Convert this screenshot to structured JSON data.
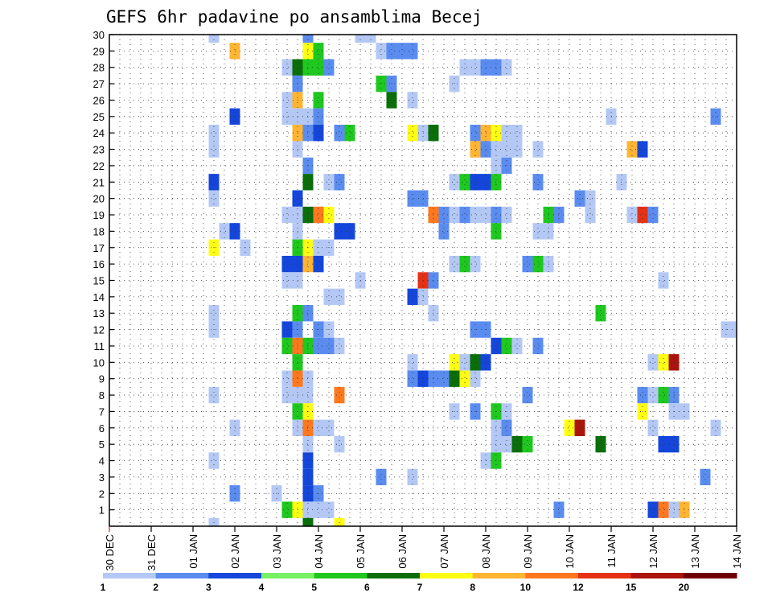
{
  "chart_data": {
    "type": "heatmap",
    "title": "GEFS 6hr padavine po ansamblima Becej",
    "xlabel": "",
    "ylabel": "",
    "y_ticks": [
      "1",
      "2",
      "3",
      "4",
      "5",
      "6",
      "7",
      "8",
      "9",
      "10",
      "11",
      "12",
      "13",
      "14",
      "15",
      "16",
      "17",
      "18",
      "19",
      "20",
      "21",
      "22",
      "23",
      "24",
      "25",
      "26",
      "27",
      "28",
      "29",
      "30"
    ],
    "x_ticks": [
      "30 DEC",
      "31 DEC",
      "01 JAN",
      "02 JAN",
      "03 JAN",
      "04 JAN",
      "05 JAN",
      "06 JAN",
      "07 JAN",
      "08 JAN",
      "09 JAN",
      "10 JAN",
      "11 JAN",
      "12 JAN",
      "13 JAN",
      "14 JAN"
    ],
    "time_step_hours": 6,
    "xlim_days": [
      0,
      15
    ],
    "ylim_members": [
      0,
      30
    ],
    "grid": true,
    "colorbar": {
      "labels": [
        "1",
        "2",
        "3",
        "4",
        "5",
        "6",
        "7",
        "8",
        "10",
        "12",
        "15",
        "20"
      ],
      "colors": [
        "#b4c8f5",
        "#5a8cf0",
        "#1446dc",
        "#78f064",
        "#1ec81e",
        "#0a6e0a",
        "#ffff14",
        "#ffb432",
        "#ff781e",
        "#e63214",
        "#aa140a",
        "#6e0000"
      ]
    },
    "cells": [
      [
        30,
        2.5,
        1
      ],
      [
        30,
        4.75,
        2
      ],
      [
        30,
        6,
        1
      ],
      [
        30,
        6.25,
        1
      ],
      [
        29,
        3,
        8
      ],
      [
        29,
        4.75,
        7
      ],
      [
        29,
        5,
        5
      ],
      [
        29,
        6.5,
        1
      ],
      [
        29,
        6.75,
        2
      ],
      [
        29,
        7,
        2
      ],
      [
        29,
        7.25,
        2
      ],
      [
        28,
        4.25,
        1
      ],
      [
        28,
        4.5,
        6
      ],
      [
        28,
        4.75,
        5
      ],
      [
        28,
        5,
        5
      ],
      [
        28,
        5.25,
        2
      ],
      [
        28,
        8.5,
        1
      ],
      [
        28,
        8.75,
        1
      ],
      [
        28,
        9,
        2
      ],
      [
        28,
        9.25,
        2
      ],
      [
        28,
        9.5,
        1
      ],
      [
        27,
        4.5,
        2
      ],
      [
        27,
        6.5,
        5
      ],
      [
        27,
        6.75,
        2
      ],
      [
        27,
        8.25,
        1
      ],
      [
        26,
        4.25,
        1
      ],
      [
        26,
        4.5,
        8
      ],
      [
        26,
        5,
        5
      ],
      [
        26,
        6.75,
        6
      ],
      [
        26,
        7.25,
        1
      ],
      [
        25,
        3,
        3
      ],
      [
        25,
        4.25,
        1
      ],
      [
        25,
        4.5,
        1
      ],
      [
        25,
        4.75,
        1
      ],
      [
        25,
        5,
        2
      ],
      [
        25,
        12,
        1
      ],
      [
        25,
        14.5,
        2
      ],
      [
        24,
        2.5,
        1
      ],
      [
        24,
        4.5,
        8
      ],
      [
        24,
        4.75,
        2
      ],
      [
        24,
        5,
        3
      ],
      [
        24,
        5.5,
        2
      ],
      [
        24,
        5.75,
        5
      ],
      [
        24,
        7.25,
        7
      ],
      [
        24,
        7.5,
        1
      ],
      [
        24,
        7.75,
        6
      ],
      [
        24,
        8.75,
        2
      ],
      [
        24,
        9,
        8
      ],
      [
        24,
        9.25,
        7
      ],
      [
        24,
        9.5,
        1
      ],
      [
        24,
        9.75,
        1
      ],
      [
        23,
        2.5,
        1
      ],
      [
        23,
        4.5,
        1
      ],
      [
        23,
        8.75,
        8
      ],
      [
        23,
        9,
        2
      ],
      [
        23,
        9.25,
        1
      ],
      [
        23,
        9.5,
        1
      ],
      [
        23,
        9.75,
        1
      ],
      [
        23,
        10.25,
        1
      ],
      [
        23,
        12.5,
        8
      ],
      [
        23,
        12.75,
        3
      ],
      [
        22,
        4.75,
        2
      ],
      [
        22,
        9.25,
        1
      ],
      [
        22,
        9.5,
        2
      ],
      [
        21,
        2.5,
        3
      ],
      [
        21,
        4.75,
        6
      ],
      [
        21,
        5.25,
        1
      ],
      [
        21,
        5.5,
        2
      ],
      [
        21,
        8.25,
        1
      ],
      [
        21,
        8.5,
        5
      ],
      [
        21,
        8.75,
        3
      ],
      [
        21,
        9,
        3
      ],
      [
        21,
        9.25,
        5
      ],
      [
        21,
        10.25,
        2
      ],
      [
        21,
        12.25,
        1
      ],
      [
        20,
        2.5,
        1
      ],
      [
        20,
        4.5,
        3
      ],
      [
        20,
        7.25,
        2
      ],
      [
        20,
        7.5,
        2
      ],
      [
        20,
        11.25,
        2
      ],
      [
        20,
        11.5,
        1
      ],
      [
        19,
        4.25,
        1
      ],
      [
        19,
        4.5,
        1
      ],
      [
        19,
        4.75,
        6
      ],
      [
        19,
        5,
        9
      ],
      [
        19,
        5.25,
        7
      ],
      [
        19,
        7.75,
        9
      ],
      [
        19,
        8,
        2
      ],
      [
        19,
        8.25,
        1
      ],
      [
        19,
        8.5,
        2
      ],
      [
        19,
        8.75,
        1
      ],
      [
        19,
        9,
        1
      ],
      [
        19,
        9.25,
        2
      ],
      [
        19,
        9.5,
        1
      ],
      [
        19,
        10.5,
        5
      ],
      [
        19,
        10.75,
        2
      ],
      [
        19,
        11.5,
        1
      ],
      [
        19,
        12.5,
        1
      ],
      [
        19,
        12.75,
        10
      ],
      [
        19,
        13,
        2
      ],
      [
        18,
        2.75,
        1
      ],
      [
        18,
        3,
        3
      ],
      [
        18,
        4.5,
        1
      ],
      [
        18,
        5.5,
        3
      ],
      [
        18,
        5.75,
        3
      ],
      [
        18,
        8,
        2
      ],
      [
        18,
        9.25,
        5
      ],
      [
        18,
        10.25,
        1
      ],
      [
        18,
        10.5,
        1
      ],
      [
        17,
        2.5,
        7
      ],
      [
        17,
        3.25,
        1
      ],
      [
        17,
        4.5,
        5
      ],
      [
        17,
        4.75,
        7
      ],
      [
        17,
        5,
        1
      ],
      [
        17,
        5.25,
        1
      ],
      [
        16,
        4.25,
        3
      ],
      [
        16,
        4.5,
        3
      ],
      [
        16,
        4.75,
        8
      ],
      [
        16,
        5,
        3
      ],
      [
        16,
        8.25,
        1
      ],
      [
        16,
        8.5,
        5
      ],
      [
        16,
        8.75,
        1
      ],
      [
        16,
        10,
        2
      ],
      [
        16,
        10.25,
        5
      ],
      [
        16,
        10.5,
        1
      ],
      [
        15,
        4.25,
        1
      ],
      [
        15,
        4.5,
        1
      ],
      [
        15,
        6,
        1
      ],
      [
        15,
        7.5,
        10
      ],
      [
        15,
        7.75,
        2
      ],
      [
        15,
        13.25,
        1
      ],
      [
        14,
        7.25,
        3
      ],
      [
        14,
        7.5,
        1
      ],
      [
        14,
        5.25,
        1
      ],
      [
        14,
        5.5,
        1
      ],
      [
        13,
        2.5,
        1
      ],
      [
        13,
        4.5,
        5
      ],
      [
        13,
        4.75,
        2
      ],
      [
        13,
        7.75,
        1
      ],
      [
        13,
        11.75,
        5
      ],
      [
        12,
        2.5,
        1
      ],
      [
        12,
        4.25,
        3
      ],
      [
        12,
        4.5,
        2
      ],
      [
        12,
        5,
        2
      ],
      [
        12,
        5.25,
        1
      ],
      [
        12,
        8.75,
        2
      ],
      [
        12,
        9,
        2
      ],
      [
        12,
        14.75,
        1
      ],
      [
        12,
        15,
        1
      ],
      [
        11,
        4.25,
        5
      ],
      [
        11,
        4.5,
        9
      ],
      [
        11,
        4.75,
        5
      ],
      [
        11,
        5,
        2
      ],
      [
        11,
        5.25,
        2
      ],
      [
        11,
        5.5,
        1
      ],
      [
        11,
        9.25,
        3
      ],
      [
        11,
        9.5,
        5
      ],
      [
        11,
        9.75,
        1
      ],
      [
        11,
        10.25,
        2
      ],
      [
        10,
        4.5,
        5
      ],
      [
        10,
        7.25,
        1
      ],
      [
        10,
        8.25,
        7
      ],
      [
        10,
        8.5,
        1
      ],
      [
        10,
        8.75,
        6
      ],
      [
        10,
        9,
        3
      ],
      [
        10,
        13,
        1
      ],
      [
        10,
        13.25,
        7
      ],
      [
        10,
        13.5,
        11
      ],
      [
        9,
        4.25,
        1
      ],
      [
        9,
        4.5,
        9
      ],
      [
        9,
        4.75,
        1
      ],
      [
        9,
        7.25,
        2
      ],
      [
        9,
        7.5,
        3
      ],
      [
        9,
        7.75,
        2
      ],
      [
        9,
        8,
        2
      ],
      [
        9,
        8.25,
        6
      ],
      [
        9,
        8.5,
        7
      ],
      [
        9,
        8.75,
        1
      ],
      [
        8,
        2.5,
        1
      ],
      [
        8,
        4.25,
        1
      ],
      [
        8,
        4.5,
        1
      ],
      [
        8,
        4.75,
        1
      ],
      [
        8,
        5.5,
        9
      ],
      [
        8,
        10,
        2
      ],
      [
        8,
        12.75,
        2
      ],
      [
        8,
        13,
        1
      ],
      [
        8,
        13.25,
        5
      ],
      [
        8,
        13.5,
        2
      ],
      [
        7,
        4.5,
        5
      ],
      [
        7,
        4.75,
        7
      ],
      [
        7,
        8.25,
        1
      ],
      [
        7,
        8.75,
        2
      ],
      [
        7,
        9.25,
        5
      ],
      [
        7,
        9.5,
        1
      ],
      [
        7,
        12.75,
        7
      ],
      [
        7,
        13.5,
        1
      ],
      [
        7,
        13.75,
        1
      ],
      [
        6,
        3,
        1
      ],
      [
        6,
        4.5,
        1
      ],
      [
        6,
        4.75,
        9
      ],
      [
        6,
        5,
        1
      ],
      [
        6,
        5.25,
        1
      ],
      [
        6,
        9.25,
        1
      ],
      [
        6,
        9.5,
        2
      ],
      [
        6,
        11,
        7
      ],
      [
        6,
        11.25,
        11
      ],
      [
        6,
        13,
        1
      ],
      [
        6,
        14.5,
        1
      ],
      [
        5,
        4.75,
        1
      ],
      [
        5,
        5.5,
        1
      ],
      [
        5,
        9.25,
        1
      ],
      [
        5,
        9.5,
        1
      ],
      [
        5,
        9.75,
        6
      ],
      [
        5,
        10,
        5
      ],
      [
        5,
        11.75,
        6
      ],
      [
        5,
        13.25,
        3
      ],
      [
        5,
        13.5,
        3
      ],
      [
        4,
        2.5,
        1
      ],
      [
        4,
        4.75,
        3
      ],
      [
        4,
        9,
        1
      ],
      [
        4,
        9.25,
        5
      ],
      [
        3,
        4.75,
        3
      ],
      [
        3,
        6.5,
        2
      ],
      [
        3,
        7.25,
        1
      ],
      [
        3,
        14.25,
        2
      ],
      [
        2,
        3,
        2
      ],
      [
        2,
        4,
        1
      ],
      [
        2,
        4.75,
        3
      ],
      [
        2,
        5,
        2
      ],
      [
        1,
        4.25,
        5
      ],
      [
        1,
        4.5,
        7
      ],
      [
        1,
        4.75,
        1
      ],
      [
        1,
        5,
        1
      ],
      [
        1,
        5.25,
        1
      ],
      [
        1,
        10.75,
        2
      ],
      [
        1,
        13,
        3
      ],
      [
        1,
        13.25,
        9
      ],
      [
        1,
        13.5,
        1
      ],
      [
        1,
        13.75,
        8
      ],
      [
        0,
        2.5,
        1
      ],
      [
        0,
        4.75,
        6
      ],
      [
        0,
        5.5,
        7
      ]
    ]
  }
}
